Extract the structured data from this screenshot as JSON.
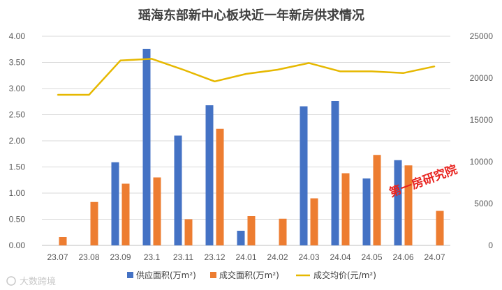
{
  "chart_data": {
    "type": "bar",
    "title": "瑶海东部新中心板块近一年新房供求情况",
    "categories": [
      "23.07",
      "23.08",
      "23.09",
      "23.1",
      "23.11",
      "23.12",
      "24.01",
      "24.02",
      "24.03",
      "24.04",
      "24.05",
      "24.06",
      "24.07"
    ],
    "series": [
      {
        "name": "供应面积(万m²)",
        "type": "bar",
        "axis": "left",
        "color": "#4472c4",
        "values": [
          0,
          0,
          1.59,
          3.76,
          2.1,
          2.68,
          0.28,
          0,
          2.66,
          2.76,
          1.28,
          1.63,
          0
        ]
      },
      {
        "name": "成交面积(万m²)",
        "type": "bar",
        "axis": "left",
        "color": "#ed7d31",
        "values": [
          0.16,
          0.83,
          1.18,
          1.3,
          0.5,
          2.23,
          0.56,
          0.51,
          0.9,
          1.38,
          1.73,
          1.53,
          0.66
        ]
      },
      {
        "name": "成交均价(元/m²)",
        "type": "line",
        "axis": "right",
        "color": "#e6b800",
        "values": [
          18000,
          18000,
          22100,
          22300,
          21000,
          19600,
          20500,
          21000,
          21800,
          20800,
          20800,
          20600,
          21400
        ]
      }
    ],
    "y_left": {
      "min": 0,
      "max": 4,
      "ticks": [
        "0.00",
        "0.50",
        "1.00",
        "1.50",
        "2.00",
        "2.50",
        "3.00",
        "3.50",
        "4.00"
      ]
    },
    "y_right": {
      "min": 0,
      "max": 25000,
      "ticks": [
        "0",
        "5000",
        "10000",
        "15000",
        "20000",
        "25000"
      ]
    },
    "grid": true,
    "legend_position": "bottom"
  },
  "stamp_text": "第一房研究院",
  "watermark_text": "大数跨境"
}
